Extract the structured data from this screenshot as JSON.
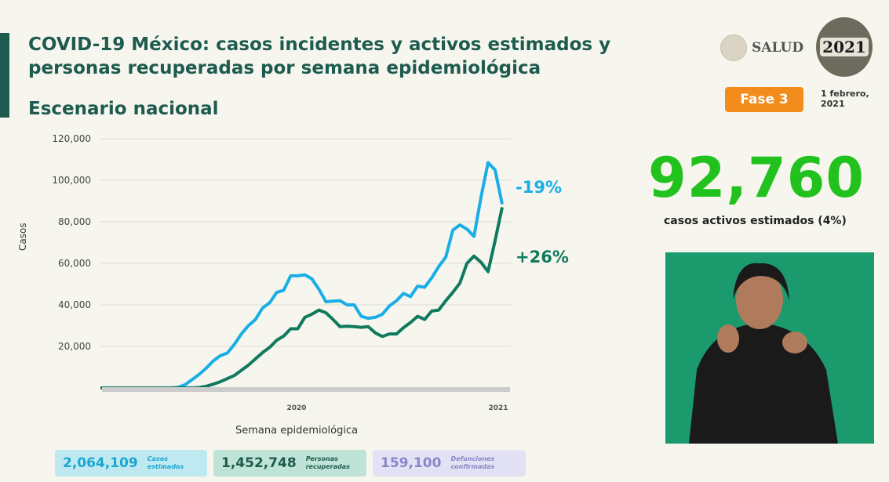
{
  "header": {
    "title": "COVID-19 México: casos incidentes y activos estimados y personas recuperadas por semana epidemiológica",
    "subtitle": "Escenario nacional",
    "logo_text": "SALUD",
    "logo_2021": "2021",
    "phase_badge": "Fase 3",
    "date": "1 febrero, 2021"
  },
  "headline": {
    "value": "92,760",
    "label": "casos activos estimados (4%)",
    "color": "#22c21e"
  },
  "stats": [
    {
      "value": "2,064,109",
      "label": "Casos estimados",
      "color": "#19a6d1"
    },
    {
      "value": "1,452,748",
      "label": "Personas recuperadas",
      "color": "#1e5b4f"
    },
    {
      "value": "159,100",
      "label": "Defunciones confirmadas",
      "color": "#8a86c8"
    }
  ],
  "chart_data": {
    "type": "line",
    "xlabel": "Semana epidemiológica",
    "ylabel": "Casos",
    "x_year_labels": [
      "2020",
      "2021"
    ],
    "yticks": [
      "20,000",
      "40,000",
      "60,000",
      "80,000",
      "100,000",
      "120,000"
    ],
    "ytick_values": [
      20000,
      40000,
      60000,
      80000,
      100000,
      120000
    ],
    "ylim": [
      0,
      120000
    ],
    "grid": true,
    "x": [
      0,
      1,
      2,
      3,
      4,
      5,
      6,
      7,
      8,
      9,
      10,
      11,
      12,
      13,
      14,
      15,
      16,
      17,
      18,
      19,
      20,
      21,
      22,
      23,
      24,
      25,
      26,
      27,
      28,
      29,
      30,
      31,
      32,
      33,
      34,
      35,
      36,
      37,
      38,
      39,
      40,
      41,
      42,
      43,
      44,
      45,
      46,
      47,
      48,
      49,
      50,
      51,
      52,
      53,
      54,
      55,
      56,
      57
    ],
    "series": [
      {
        "color": "#19aee6",
        "values": [
          0,
          0,
          0,
          0,
          0,
          0,
          0,
          0,
          0,
          0,
          0,
          300,
          1500,
          4000,
          6500,
          9500,
          13000,
          15500,
          16800,
          21000,
          26000,
          30000,
          33000,
          38500,
          41000,
          46000,
          47000,
          54000,
          54000,
          54500,
          52500,
          47500,
          41500,
          41800,
          42000,
          40000,
          40000,
          34500,
          33500,
          34000,
          35500,
          39500,
          42000,
          45500,
          44000,
          49000,
          48500,
          53000,
          58500,
          63000,
          76000,
          78500,
          76500,
          73000,
          92000,
          108500,
          105000,
          88500
        ]
      },
      {
        "color": "#0f7a5e",
        "values": [
          0,
          0,
          0,
          0,
          0,
          0,
          0,
          0,
          0,
          0,
          0,
          0,
          0,
          0,
          200,
          800,
          1800,
          3000,
          4500,
          6000,
          8500,
          11000,
          14000,
          17000,
          19500,
          23000,
          25000,
          28500,
          28500,
          34000,
          35500,
          37500,
          36200,
          33000,
          29500,
          29700,
          29500,
          29200,
          29500,
          26500,
          24800,
          26000,
          26000,
          29000,
          31500,
          34500,
          33000,
          37000,
          37500,
          42000,
          46000,
          50500,
          60000,
          63500,
          60500,
          56000,
          71000,
          87000
        ]
      }
    ],
    "annotations": [
      {
        "text": "-19%",
        "color": "#19aee6"
      },
      {
        "text": "+26%",
        "color": "#0f7a5e"
      }
    ]
  }
}
